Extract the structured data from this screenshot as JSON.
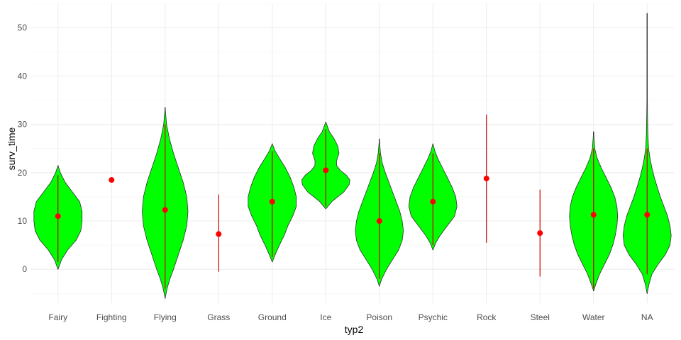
{
  "chart_data": {
    "type": "violin",
    "xlabel": "typ2",
    "ylabel": "surv_time",
    "ylim": [
      -7,
      55
    ],
    "yticks": [
      0,
      10,
      20,
      30,
      40,
      50
    ],
    "ytick_labels": [
      "0",
      "10",
      "20",
      "30",
      "40",
      "50"
    ],
    "grid": true,
    "colors": {
      "violin_fill": "#00ff00",
      "violin_outline": "#333333",
      "point": "#ff0000",
      "range_line": "#cc0000",
      "whisker": "#111111"
    },
    "categories": [
      "Fairy",
      "Fighting",
      "Flying",
      "Grass",
      "Ground",
      "Ice",
      "Poison",
      "Psychic",
      "Rock",
      "Steel",
      "Water",
      "NA"
    ],
    "groups": [
      {
        "category": "Fairy",
        "mean": 11,
        "whisker": [
          0,
          21.5
        ],
        "range": [
          1.5,
          19.5
        ],
        "density": [
          [
            0,
            0
          ],
          [
            2,
            0.15
          ],
          [
            4,
            0.4
          ],
          [
            6,
            0.75
          ],
          [
            8,
            0.95
          ],
          [
            10,
            1.0
          ],
          [
            12,
            1.0
          ],
          [
            14,
            0.9
          ],
          [
            16,
            0.6
          ],
          [
            18,
            0.3
          ],
          [
            20,
            0.1
          ],
          [
            21.5,
            0
          ]
        ]
      },
      {
        "category": "Fighting",
        "mean": 18.5,
        "whisker": null,
        "range": [
          18.5,
          18.5
        ],
        "density": []
      },
      {
        "category": "Flying",
        "mean": 12.3,
        "whisker": [
          -6,
          33.5
        ],
        "range": [
          -4,
          30
        ],
        "density": [
          [
            -6,
            0
          ],
          [
            -4,
            0.08
          ],
          [
            -2,
            0.2
          ],
          [
            0,
            0.35
          ],
          [
            3,
            0.55
          ],
          [
            6,
            0.75
          ],
          [
            9,
            0.9
          ],
          [
            12,
            0.95
          ],
          [
            15,
            0.9
          ],
          [
            18,
            0.75
          ],
          [
            21,
            0.55
          ],
          [
            24,
            0.35
          ],
          [
            27,
            0.18
          ],
          [
            30,
            0.06
          ],
          [
            33.5,
            0
          ]
        ]
      },
      {
        "category": "Grass",
        "mean": 7.3,
        "whisker": null,
        "range": [
          -0.5,
          15.5
        ],
        "density": []
      },
      {
        "category": "Ground",
        "mean": 14,
        "whisker": [
          1.5,
          26
        ],
        "range": [
          2.5,
          24.5
        ],
        "density": [
          [
            1.5,
            0
          ],
          [
            3,
            0.12
          ],
          [
            5,
            0.3
          ],
          [
            7,
            0.5
          ],
          [
            9,
            0.65
          ],
          [
            11,
            0.85
          ],
          [
            13,
            1.0
          ],
          [
            15,
            1.0
          ],
          [
            17,
            0.9
          ],
          [
            19,
            0.75
          ],
          [
            21,
            0.55
          ],
          [
            23,
            0.3
          ],
          [
            24.5,
            0.12
          ],
          [
            26,
            0
          ]
        ]
      },
      {
        "category": "Ice",
        "mean": 20.5,
        "whisker": [
          12.5,
          30.5
        ],
        "range": [
          13,
          29
        ],
        "density": [
          [
            12.5,
            0
          ],
          [
            14,
            0.25
          ],
          [
            16,
            0.75
          ],
          [
            17.5,
            0.97
          ],
          [
            18.5,
            1.0
          ],
          [
            19.5,
            0.85
          ],
          [
            20.5,
            0.6
          ],
          [
            21.5,
            0.45
          ],
          [
            22.5,
            0.45
          ],
          [
            24,
            0.55
          ],
          [
            25.5,
            0.5
          ],
          [
            27,
            0.35
          ],
          [
            28.5,
            0.15
          ],
          [
            30.5,
            0
          ]
        ]
      },
      {
        "category": "Poison",
        "mean": 10,
        "whisker": [
          -3.5,
          27
        ],
        "range": [
          -2,
          24
        ],
        "density": [
          [
            -3.5,
            0
          ],
          [
            -2,
            0.1
          ],
          [
            0,
            0.3
          ],
          [
            2,
            0.55
          ],
          [
            4,
            0.8
          ],
          [
            6,
            0.95
          ],
          [
            8,
            1.0
          ],
          [
            10,
            0.95
          ],
          [
            12,
            0.85
          ],
          [
            14,
            0.7
          ],
          [
            16,
            0.55
          ],
          [
            18,
            0.4
          ],
          [
            20,
            0.25
          ],
          [
            22,
            0.12
          ],
          [
            24,
            0.05
          ],
          [
            27,
            0
          ]
        ]
      },
      {
        "category": "Psychic",
        "mean": 14,
        "whisker": [
          4,
          26
        ],
        "range": [
          5,
          24
        ],
        "density": [
          [
            4,
            0
          ],
          [
            5.5,
            0.12
          ],
          [
            7,
            0.3
          ],
          [
            9,
            0.6
          ],
          [
            11,
            0.9
          ],
          [
            13,
            1.0
          ],
          [
            15,
            0.95
          ],
          [
            17,
            0.8
          ],
          [
            19,
            0.6
          ],
          [
            21,
            0.4
          ],
          [
            23,
            0.2
          ],
          [
            24.5,
            0.08
          ],
          [
            26,
            0
          ]
        ]
      },
      {
        "category": "Rock",
        "mean": 18.8,
        "whisker": null,
        "range": [
          5.5,
          32
        ],
        "density": []
      },
      {
        "category": "Steel",
        "mean": 7.5,
        "whisker": null,
        "range": [
          -1.5,
          16.5
        ],
        "density": []
      },
      {
        "category": "Water",
        "mean": 11.3,
        "whisker": [
          -4.5,
          28.5
        ],
        "range": [
          -4,
          25
        ],
        "density": [
          [
            -4.5,
            0
          ],
          [
            -3,
            0.1
          ],
          [
            -1,
            0.25
          ],
          [
            1,
            0.45
          ],
          [
            3,
            0.65
          ],
          [
            5,
            0.8
          ],
          [
            7,
            0.9
          ],
          [
            9,
            0.97
          ],
          [
            11,
            1.0
          ],
          [
            13,
            0.97
          ],
          [
            15,
            0.88
          ],
          [
            17,
            0.72
          ],
          [
            19,
            0.52
          ],
          [
            21,
            0.32
          ],
          [
            23,
            0.15
          ],
          [
            25,
            0.05
          ],
          [
            28.5,
            0
          ]
        ]
      },
      {
        "category": "NA",
        "mean": 11.3,
        "whisker": [
          -5,
          53
        ],
        "range": [
          -1,
          25
        ],
        "density": [
          [
            -5,
            0
          ],
          [
            -3,
            0.08
          ],
          [
            -1,
            0.2
          ],
          [
            1,
            0.45
          ],
          [
            3,
            0.75
          ],
          [
            5,
            0.95
          ],
          [
            7,
            1.0
          ],
          [
            9,
            0.95
          ],
          [
            11,
            0.85
          ],
          [
            13,
            0.7
          ],
          [
            15,
            0.55
          ],
          [
            17,
            0.42
          ],
          [
            19,
            0.3
          ],
          [
            21,
            0.2
          ],
          [
            23,
            0.12
          ],
          [
            25,
            0.06
          ],
          [
            28,
            0.03
          ],
          [
            32,
            0.015
          ],
          [
            36,
            0.008
          ],
          [
            53,
            0
          ]
        ]
      }
    ]
  }
}
